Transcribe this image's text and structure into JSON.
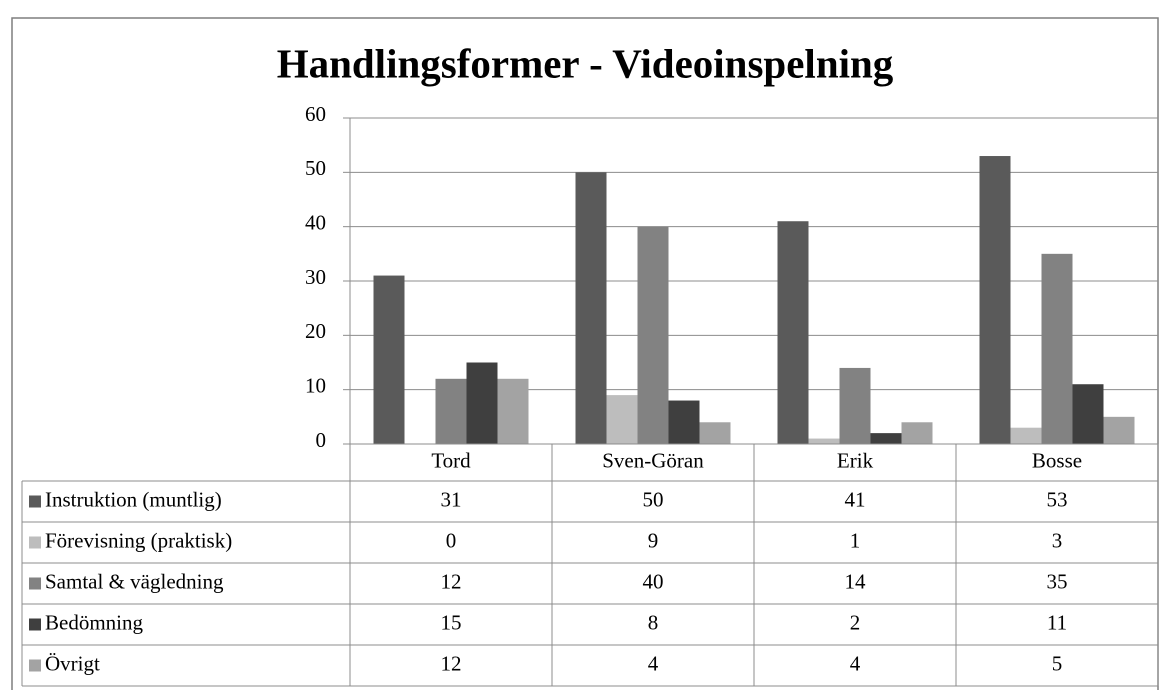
{
  "chart_data": {
    "type": "bar",
    "title": "Handlingsformer - Videoinspelning",
    "categories": [
      "Tord",
      "Sven-Göran",
      "Erik",
      "Bosse"
    ],
    "series": [
      {
        "name": "Instruktion (muntlig)",
        "color": "#5a5a5a",
        "values": [
          31,
          50,
          41,
          53
        ]
      },
      {
        "name": "Förevisning (praktisk)",
        "color": "#bdbdbd",
        "values": [
          0,
          9,
          1,
          3
        ]
      },
      {
        "name": "Samtal & vägledning",
        "color": "#828282",
        "values": [
          12,
          40,
          14,
          35
        ]
      },
      {
        "name": "Bedömning",
        "color": "#3f3f3f",
        "values": [
          15,
          8,
          2,
          11
        ]
      },
      {
        "name": "Övrigt",
        "color": "#a3a3a3",
        "values": [
          12,
          4,
          4,
          5
        ]
      }
    ],
    "ylim": [
      0,
      60
    ],
    "yticks": [
      0,
      10,
      20,
      30,
      40,
      50,
      60
    ],
    "grid": true,
    "data_table": true
  }
}
